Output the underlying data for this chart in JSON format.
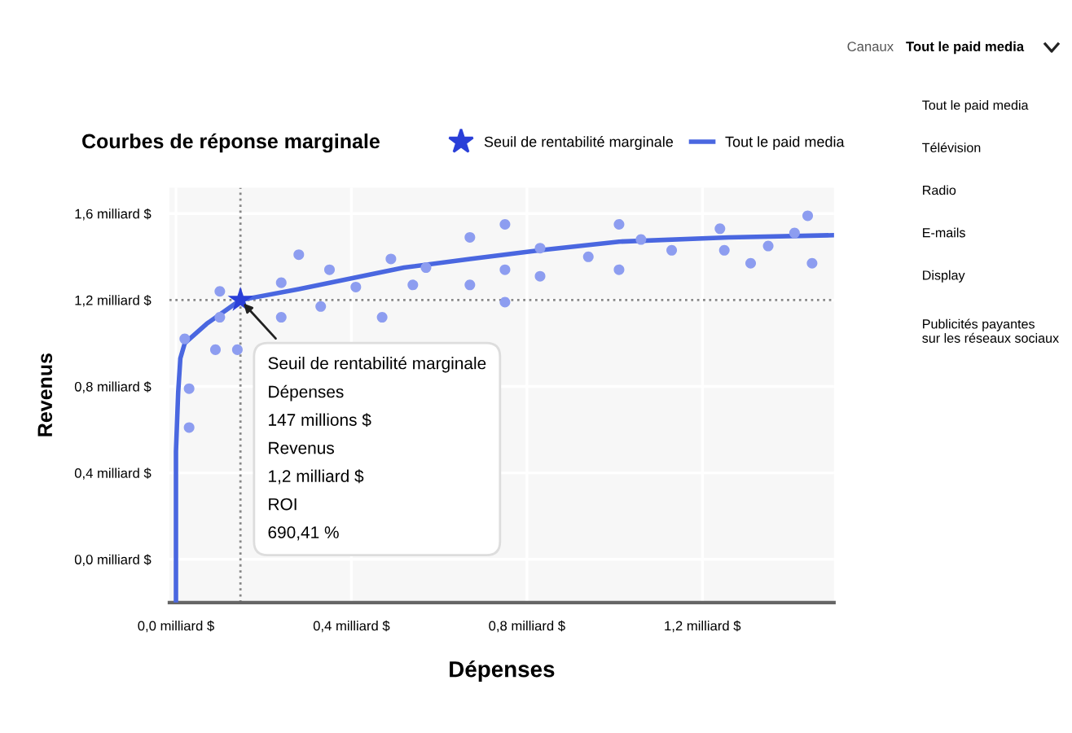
{
  "chart_data": {
    "type": "scatter",
    "title": "Courbes de réponse marginale",
    "xlabel": "Dépenses",
    "ylabel": "Revenus",
    "xlim": [
      -0.015,
      1.5
    ],
    "ylim": [
      -0.2,
      1.72
    ],
    "xticks": [
      {
        "value": 0,
        "label": "0,0 milliard $"
      },
      {
        "value": 0.4,
        "label": "0,4 milliard $"
      },
      {
        "value": 0.8,
        "label": "0,8 milliard $"
      },
      {
        "value": 1.2,
        "label": "1,2 milliard $"
      }
    ],
    "yticks": [
      {
        "value": 0,
        "label": "0,0 milliard $"
      },
      {
        "value": 0.4,
        "label": "0,4 milliard $"
      },
      {
        "value": 0.8,
        "label": "0,8 milliard $"
      },
      {
        "value": 1.2,
        "label": "1,2 milliard $"
      },
      {
        "value": 1.6,
        "label": "1,6 milliard $"
      }
    ],
    "grid": true,
    "legend": "top right",
    "series": [
      {
        "color": "#8d9df0",
        "marker": "circle",
        "x": [
          0.02,
          0.03,
          0.03,
          0.09,
          0.1,
          0.1,
          0.14,
          0.24,
          0.24,
          0.28,
          0.33,
          0.35,
          0.41,
          0.47,
          0.49,
          0.54,
          0.57,
          0.67,
          0.67,
          0.75,
          0.75,
          0.75,
          0.83,
          0.83,
          0.94,
          1.01,
          1.01,
          1.06,
          1.13,
          1.24,
          1.25,
          1.31,
          1.35,
          1.41,
          1.44,
          1.45
        ],
        "values": [
          1.02,
          0.79,
          0.61,
          0.97,
          1.24,
          1.12,
          0.97,
          1.28,
          1.12,
          1.41,
          1.17,
          1.34,
          1.26,
          1.12,
          1.39,
          1.27,
          1.35,
          1.49,
          1.27,
          1.55,
          1.34,
          1.19,
          1.44,
          1.31,
          1.4,
          1.55,
          1.34,
          1.48,
          1.43,
          1.53,
          1.43,
          1.37,
          1.45,
          1.51,
          1.59,
          1.37
        ]
      },
      {
        "type": "line",
        "name": "Tout le paid media",
        "color": "#4a67e0",
        "marker": "none",
        "line_style": "solid",
        "x": [
          0,
          0,
          0.005,
          0.01,
          0.02,
          0.07,
          0.147,
          0.28,
          0.4,
          0.52,
          0.67,
          0.83,
          1.01,
          1.26,
          1.5
        ],
        "values": [
          -0.2,
          0.5,
          0.77,
          0.93,
          1.0,
          1.09,
          1.2,
          1.25,
          1.3,
          1.35,
          1.39,
          1.43,
          1.47,
          1.49,
          1.5
        ]
      },
      {
        "type": "scatter",
        "name": "Seuil de rentabilité marginale",
        "color": "#2a3fd8",
        "marker": "star",
        "x": [
          0.147
        ],
        "values": [
          1.2
        ]
      }
    ],
    "ref_lines": [
      {
        "axis": "x",
        "value": 0.147,
        "color": "#888888",
        "line_style": "dotted"
      },
      {
        "axis": "y",
        "value": 1.2,
        "color": "#888888",
        "line_style": "dotted"
      }
    ],
    "annotations": [
      {
        "text": "Seuil de rentabilité marginale\nDépenses\n147 millions $\nRevenus\n1,2 milliard $\nROI\n690,41 %",
        "x": 0.147,
        "y": 1.2
      },
      "Canaux",
      "Tout le paid media",
      "Tout le paid media",
      "Télévision",
      "Radio",
      "E-mails",
      "Display",
      "Publicités payantes\nsur les réseaux sociaux"
    ]
  }
}
